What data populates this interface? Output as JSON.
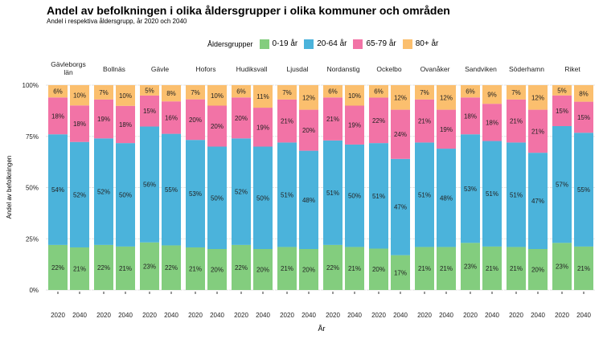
{
  "chart_data": {
    "type": "bar",
    "stacked": true,
    "title": "Andel av befolkningen i olika åldersgrupper i olika kommuner och områden",
    "subtitle": "Andel i respektiva åldersgrupp, år 2020 och 2040",
    "xlabel": "År",
    "ylabel": "Andel av befolkningen",
    "ylim": [
      0,
      100
    ],
    "yticks": [
      "0%",
      "25%",
      "50%",
      "75%",
      "100%"
    ],
    "legend_title": "Åldersgrupper",
    "legend_position": "top",
    "grid": true,
    "series": [
      {
        "name": "0-19 år",
        "color": "#83CD7E"
      },
      {
        "name": "20-64 år",
        "color": "#4BB3DB"
      },
      {
        "name": "65-79 år",
        "color": "#F273A6"
      },
      {
        "name": "80+ år",
        "color": "#FBBF6E"
      }
    ],
    "categories": [
      "2020",
      "2040"
    ],
    "facets": [
      {
        "name": "Gävleborgs\nlän",
        "values": [
          [
            22,
            54,
            18,
            6
          ],
          [
            21,
            52,
            18,
            10
          ]
        ]
      },
      {
        "name": "Bollnäs",
        "values": [
          [
            22,
            52,
            19,
            7
          ],
          [
            21,
            50,
            18,
            10
          ]
        ]
      },
      {
        "name": "Gävle",
        "values": [
          [
            23,
            56,
            15,
            5
          ],
          [
            22,
            55,
            16,
            8
          ]
        ]
      },
      {
        "name": "Hofors",
        "values": [
          [
            21,
            53,
            20,
            7
          ],
          [
            20,
            50,
            20,
            10
          ]
        ]
      },
      {
        "name": "Hudiksvall",
        "values": [
          [
            22,
            52,
            20,
            6
          ],
          [
            20,
            50,
            19,
            11
          ]
        ]
      },
      {
        "name": "Ljusdal",
        "values": [
          [
            21,
            51,
            21,
            7
          ],
          [
            20,
            48,
            20,
            12
          ]
        ]
      },
      {
        "name": "Nordanstig",
        "values": [
          [
            22,
            51,
            21,
            6
          ],
          [
            21,
            50,
            19,
            10
          ]
        ]
      },
      {
        "name": "Ockelbo",
        "values": [
          [
            20,
            51,
            22,
            6
          ],
          [
            17,
            47,
            24,
            12
          ]
        ]
      },
      {
        "name": "Ovanåker",
        "values": [
          [
            21,
            51,
            21,
            7
          ],
          [
            21,
            48,
            19,
            12
          ]
        ]
      },
      {
        "name": "Sandviken",
        "values": [
          [
            23,
            53,
            18,
            6
          ],
          [
            21,
            51,
            18,
            9
          ]
        ]
      },
      {
        "name": "Söderhamn",
        "values": [
          [
            21,
            51,
            21,
            7
          ],
          [
            20,
            47,
            21,
            12
          ]
        ]
      },
      {
        "name": "Riket",
        "values": [
          [
            23,
            57,
            15,
            5
          ],
          [
            21,
            55,
            15,
            8
          ]
        ]
      }
    ]
  }
}
